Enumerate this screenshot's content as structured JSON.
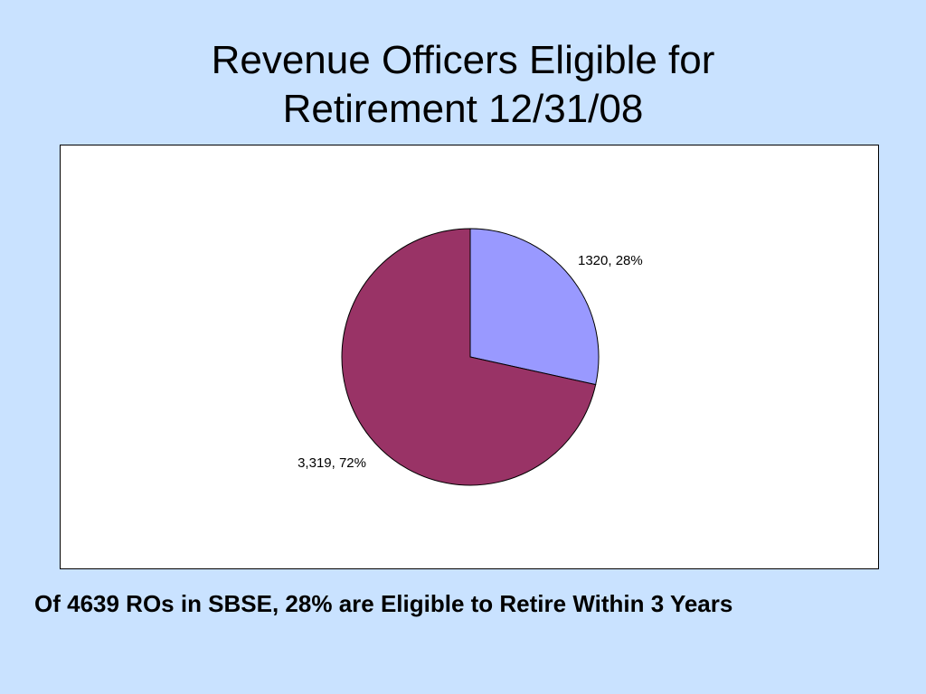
{
  "slide": {
    "title_line1": "Revenue Officers Eligible for",
    "title_line2": "Retirement 12/31/08",
    "caption": "Of 4639 ROs in SBSE, 28% are Eligible to Retire Within 3 Years"
  },
  "chart_data": {
    "type": "pie",
    "title": "",
    "start_angle_deg": 0,
    "direction": "clockwise",
    "slices": [
      {
        "value": 1320,
        "percent": 28,
        "label": "1320, 28%",
        "color": "#9999ff"
      },
      {
        "value": 3319,
        "percent": 72,
        "label": "3,319, 72%",
        "color": "#993366"
      }
    ],
    "legend": "none"
  }
}
